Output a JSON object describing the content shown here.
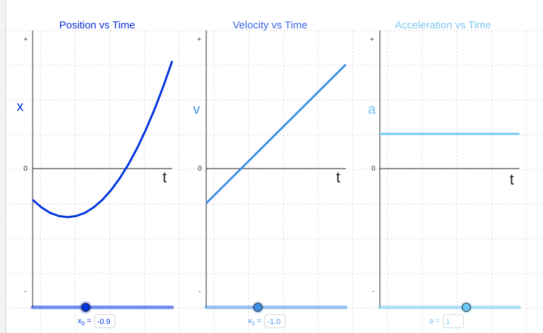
{
  "colors": {
    "position": "#0033dd",
    "velocity": "#3f8fe4",
    "acceleration": "#6ec8f5",
    "position_title": "#0a2ed6",
    "velocity_title": "#3a66e6",
    "acceleration_title": "#7cc7f0",
    "grid": "#c8c8c8",
    "axis": "#222222"
  },
  "panels": [
    {
      "title": "Position vs Time",
      "axis_symbol": "x",
      "t_label": "t",
      "tick_plus": "+",
      "tick_zero": "0",
      "tick_minus": "-",
      "slider": {
        "label": "x",
        "subscript": "0",
        "equals": "=",
        "value": "-0.9",
        "fraction": 0.38
      }
    },
    {
      "title": "Velocity vs Time",
      "axis_symbol": "v",
      "t_label": "t",
      "tick_plus": "+",
      "tick_zero": "0",
      "tick_minus": "-",
      "slider": {
        "label": "v",
        "subscript": "0",
        "equals": "=",
        "value": "-1.0",
        "fraction": 0.37
      }
    },
    {
      "title": "Acceleration vs Time",
      "axis_symbol": "a",
      "t_label": "t",
      "tick_plus": "+",
      "tick_zero": "0",
      "tick_minus": "-",
      "slider": {
        "label": "a",
        "subscript": "",
        "equals": "=",
        "value": "1",
        "fraction": 0.62
      }
    }
  ],
  "chart_data": [
    {
      "type": "line",
      "title": "Position vs Time",
      "xlabel": "t",
      "ylabel": "x",
      "xlim": [
        0,
        4
      ],
      "ylim": [
        -4,
        4
      ],
      "grid": true,
      "function": "x(t) = x0 + v0*t + 0.5*a*t^2",
      "params": {
        "x0": -0.9,
        "v0": -1.0,
        "a": 1
      },
      "series": [
        {
          "x": [
            0,
            0.25,
            0.5,
            0.75,
            1.0,
            1.25,
            1.5,
            1.75,
            2.0,
            2.25,
            2.5,
            2.75,
            3.0,
            3.25,
            3.5,
            3.75,
            4.0
          ],
          "y": [
            -0.9,
            -1.119,
            -1.275,
            -1.369,
            -1.4,
            -1.369,
            -1.275,
            -1.119,
            -0.9,
            -0.619,
            -0.275,
            0.131,
            0.6,
            1.131,
            1.725,
            2.381,
            3.1
          ]
        }
      ]
    },
    {
      "type": "line",
      "title": "Velocity vs Time",
      "xlabel": "t",
      "ylabel": "v",
      "xlim": [
        0,
        4
      ],
      "ylim": [
        -4,
        4
      ],
      "grid": true,
      "function": "v(t) = v0 + a*t",
      "series": [
        {
          "x": [
            0,
            4
          ],
          "y": [
            -1.0,
            3.0
          ]
        }
      ]
    },
    {
      "type": "line",
      "title": "Acceleration vs Time",
      "xlabel": "t",
      "ylabel": "a",
      "xlim": [
        0,
        4
      ],
      "ylim": [
        -4,
        4
      ],
      "grid": true,
      "function": "a(t) = a",
      "series": [
        {
          "x": [
            0,
            4
          ],
          "y": [
            1,
            1
          ]
        }
      ]
    }
  ]
}
